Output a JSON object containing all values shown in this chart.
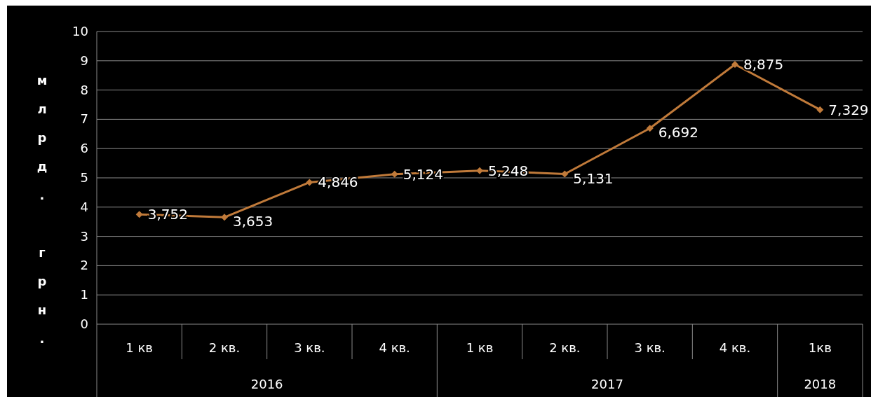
{
  "chart_data": {
    "type": "line",
    "ylabel": "млрд. грн.",
    "categories": [
      "1 кв",
      "2 кв.",
      "3 кв.",
      "4 кв.",
      "1 кв",
      "2 кв.",
      "3 кв.",
      "4 кв.",
      "1кв"
    ],
    "series": [
      {
        "color": "#c07a3a",
        "values": [
          3.752,
          3.653,
          4.846,
          5.124,
          5.248,
          5.131,
          6.692,
          8.875,
          7.329
        ]
      }
    ],
    "value_labels": [
      "3,752",
      "3,653",
      "4,846",
      "5,124",
      "5,248",
      "5,131",
      "6,692",
      "8,875",
      "7,329"
    ],
    "annotations": [
      "2016",
      "2017",
      "2018"
    ],
    "ylim": [
      0,
      10
    ],
    "yticks": [
      0,
      1,
      2,
      3,
      4,
      5,
      6,
      7,
      8,
      9,
      10
    ],
    "grid": "y",
    "marker": "diamond",
    "line_style": "solid"
  }
}
